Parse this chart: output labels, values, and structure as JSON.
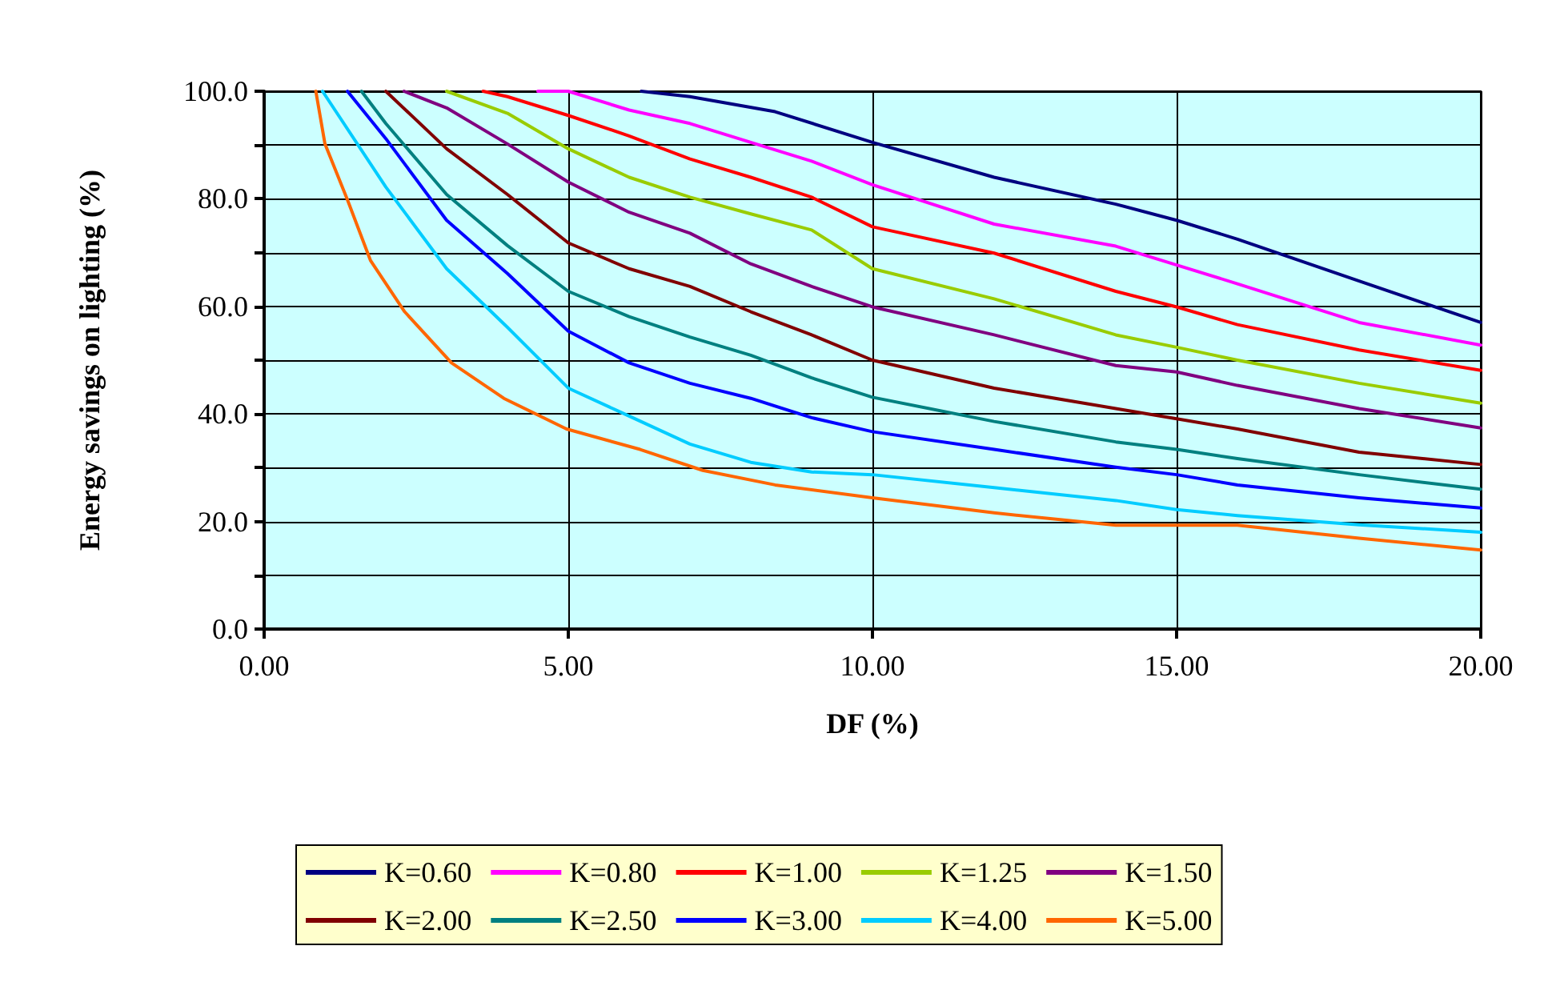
{
  "chart_data": {
    "type": "line",
    "xlabel": "DF (%)",
    "ylabel": "Energy savings on lighting (%)",
    "xlim": [
      0,
      20
    ],
    "xticks": [
      {
        "value": 0,
        "label": "0.00"
      },
      {
        "value": 5,
        "label": "5.00"
      },
      {
        "value": 10,
        "label": "10.00"
      },
      {
        "value": 15,
        "label": "15.00"
      },
      {
        "value": 20,
        "label": "20.00"
      }
    ],
    "ylim": [
      0,
      100
    ],
    "yticks": [
      {
        "value": 0,
        "label": "0.0"
      },
      {
        "value": 10,
        "label": null
      },
      {
        "value": 20,
        "label": "20.0"
      },
      {
        "value": 30,
        "label": null
      },
      {
        "value": 40,
        "label": "40.0"
      },
      {
        "value": 50,
        "label": null
      },
      {
        "value": 60,
        "label": "60.0"
      },
      {
        "value": 70,
        "label": null
      },
      {
        "value": 80,
        "label": "80.0"
      },
      {
        "value": 90,
        "label": null
      },
      {
        "value": 100,
        "label": "100.0"
      }
    ],
    "grid": true,
    "legend": "bottom",
    "marker": "none",
    "line_style": "solid",
    "series": [
      {
        "name": "K=0.60",
        "color": "#000080",
        "x": [
          6.2,
          7,
          8.4,
          10,
          12,
          14,
          15,
          16,
          18,
          20
        ],
        "values": [
          100,
          99,
          96.2,
          90.5,
          84,
          79,
          76,
          72.5,
          64.7,
          57
        ]
      },
      {
        "name": "K=0.80",
        "color": "#ff00ff",
        "x": [
          4.5,
          5,
          6,
          7,
          8,
          9,
          10,
          12,
          14,
          15,
          16,
          18,
          20
        ],
        "values": [
          100,
          100,
          96.5,
          94,
          90.5,
          87,
          82.6,
          75.3,
          71.2,
          67.7,
          64.2,
          57,
          52.8
        ]
      },
      {
        "name": "K=1.00",
        "color": "#ff0000",
        "x": [
          3.6,
          4,
          5,
          6,
          7,
          8,
          9,
          10,
          12,
          14,
          15,
          16,
          18,
          20
        ],
        "values": [
          100,
          99,
          95.5,
          91.7,
          87.4,
          84,
          80.3,
          74.8,
          69.9,
          62.8,
          59.9,
          56.6,
          51.9,
          48.1
        ]
      },
      {
        "name": "K=1.25",
        "color": "#99cc00",
        "x": [
          3,
          4,
          5,
          6,
          7,
          8,
          9,
          10,
          12,
          14,
          15,
          16,
          18,
          20
        ],
        "values": [
          100,
          95.9,
          89.3,
          84,
          80.3,
          77.2,
          74.2,
          67,
          61.4,
          54.7,
          52.4,
          50,
          45.7,
          42
        ]
      },
      {
        "name": "K=1.50",
        "color": "#800080",
        "x": [
          2.3,
          3,
          4,
          5,
          6,
          7,
          8,
          9,
          10,
          12,
          14,
          15,
          16,
          18,
          20
        ],
        "values": [
          100,
          96.9,
          90.2,
          83.1,
          77.5,
          73.6,
          67.9,
          63.7,
          59.9,
          54.7,
          49,
          47.8,
          45.3,
          41,
          37.4
        ]
      },
      {
        "name": "K=2.00",
        "color": "#800000",
        "x": [
          2,
          3,
          4,
          5,
          6,
          7,
          8,
          9,
          10,
          12,
          14,
          15,
          16,
          18,
          20
        ],
        "values": [
          100,
          89.3,
          80.8,
          71.8,
          67,
          63.7,
          59,
          54.7,
          50,
          44.8,
          41,
          39.1,
          37.2,
          32.9,
          30.6
        ]
      },
      {
        "name": "K=2.50",
        "color": "#008080",
        "x": [
          1.6,
          2,
          3,
          4,
          5,
          6,
          7,
          8,
          9,
          10,
          12,
          14,
          15,
          16,
          18,
          20
        ],
        "values": [
          100,
          94,
          80.8,
          71.3,
          62.8,
          58.1,
          54.3,
          50.9,
          46.7,
          43.1,
          38.6,
          34.8,
          33.4,
          31.7,
          28.7,
          26
        ]
      },
      {
        "name": "K=3.00",
        "color": "#0000ff",
        "x": [
          1.37,
          2,
          3,
          4,
          5,
          6,
          7,
          8,
          9,
          10,
          12,
          14,
          15,
          16,
          18,
          20
        ],
        "values": [
          100,
          91.2,
          76,
          66.1,
          55.4,
          49.5,
          45.7,
          42.9,
          39.3,
          36.7,
          33.4,
          30.1,
          28.7,
          26.8,
          24.4,
          22.5
        ]
      },
      {
        "name": "K=4.00",
        "color": "#00ccff",
        "x": [
          0.96,
          2,
          3,
          4,
          5,
          6,
          7,
          8,
          9,
          10,
          12,
          14,
          15,
          16,
          18,
          20
        ],
        "values": [
          100,
          82.2,
          67,
          56.1,
          44.8,
          39.6,
          34.4,
          31,
          29.2,
          28.7,
          26.3,
          23.9,
          22.2,
          21.1,
          19.4,
          18
        ]
      },
      {
        "name": "K=5.00",
        "color": "#ff6600",
        "x": [
          0.85,
          1,
          1.37,
          1.75,
          2.31,
          3.08,
          3.94,
          4.97,
          6.18,
          7.21,
          8.4,
          10,
          12,
          14,
          16,
          18,
          20
        ],
        "values": [
          100,
          90.2,
          79.8,
          68.5,
          59,
          49.5,
          42.9,
          37.2,
          33.4,
          29.5,
          26.8,
          24.4,
          21.6,
          19.3,
          19.3,
          16.9,
          14.7
        ]
      }
    ]
  }
}
